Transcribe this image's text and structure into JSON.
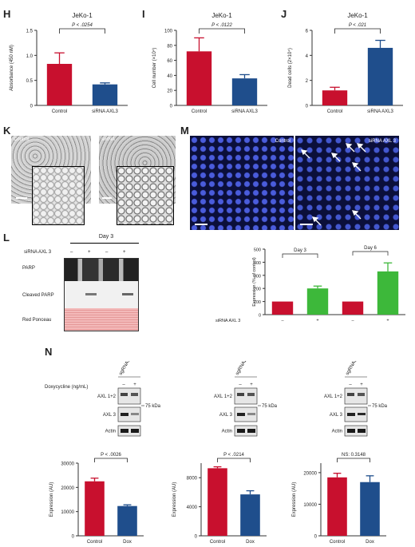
{
  "colors": {
    "control": "#c8102e",
    "sirna": "#1f4e8c",
    "green": "#3db83a",
    "axis": "#333333",
    "fluor_bg": "#0b0f3a",
    "fluor_cell": "#3a4fd0",
    "ponceau": "#e9a7a7"
  },
  "panels": {
    "H": "H",
    "I": "I",
    "J": "J",
    "K": "K",
    "L": "L",
    "M": "M",
    "N": "N"
  },
  "chart_data": [
    {
      "id": "H",
      "type": "bar",
      "title": "JeKo-1",
      "pvalue": "P < .0254",
      "ylabel": "Absorbance (450 nM)",
      "categories": [
        "Control",
        "siRNA AXL3"
      ],
      "values": [
        0.83,
        0.42
      ],
      "errors": [
        0.22,
        0.03
      ],
      "ylim": [
        0,
        1.5
      ],
      "yticks": [
        "0",
        "0.5",
        "1.0",
        "1.5"
      ],
      "ytick_values": [
        0,
        0.5,
        1.0,
        1.5
      ]
    },
    {
      "id": "I",
      "type": "bar",
      "title": "JeKo-1",
      "pvalue": "P < .0122",
      "ylabel": "Cell number (×10⁴)",
      "categories": [
        "Control",
        "siRNA AXL3"
      ],
      "values": [
        72,
        36
      ],
      "errors": [
        18,
        5
      ],
      "ylim": [
        0,
        100
      ],
      "yticks": [
        "0",
        "20",
        "40",
        "60",
        "80",
        "100"
      ],
      "ytick_values": [
        0,
        20,
        40,
        60,
        80,
        100
      ]
    },
    {
      "id": "J",
      "type": "bar",
      "title": "JeKo-1",
      "pvalue": "P < .021",
      "ylabel": "Dead cells (2×10⁴)",
      "categories": [
        "Control",
        "siRNA AXL3"
      ],
      "values": [
        1.2,
        4.6
      ],
      "errors": [
        0.25,
        0.6
      ],
      "ylim": [
        0,
        6
      ],
      "yticks": [
        "0",
        "2",
        "4",
        "6"
      ],
      "ytick_values": [
        0,
        2,
        4,
        6
      ]
    },
    {
      "id": "M",
      "type": "bar",
      "ylabel": "Expression (% of control)",
      "xlabel": "siRNA AXL 3",
      "groups": [
        "Day 3",
        "Day 6"
      ],
      "categories": [
        "–",
        "+",
        "–",
        "+"
      ],
      "values": [
        100,
        200,
        100,
        330
      ],
      "errors": [
        0,
        18,
        0,
        65
      ],
      "ylim": [
        0,
        500
      ],
      "yticks": [
        "0",
        "100",
        "200",
        "300",
        "400",
        "500"
      ],
      "ytick_values": [
        0,
        100,
        200,
        300,
        400,
        500
      ]
    },
    {
      "id": "N1",
      "type": "bar",
      "pvalue": "P < .0026",
      "ylabel": "Expression (AU)",
      "categories": [
        "Control",
        "Dox"
      ],
      "values": [
        22500,
        12300
      ],
      "errors": [
        1300,
        500
      ],
      "ylim": [
        0,
        30000
      ],
      "yticks": [
        "0",
        "10000",
        "20000",
        "30000"
      ],
      "ytick_values": [
        0,
        10000,
        20000,
        30000
      ]
    },
    {
      "id": "N2",
      "type": "bar",
      "pvalue": "P < .0214",
      "ylabel": "Expression (AU)",
      "categories": [
        "Control",
        "Dox"
      ],
      "values": [
        9300,
        5700
      ],
      "errors": [
        200,
        500
      ],
      "ylim": [
        0,
        10000
      ],
      "yticks": [
        "0",
        "4000",
        "8000"
      ],
      "ytick_values": [
        0,
        4000,
        8000
      ]
    },
    {
      "id": "N3",
      "type": "bar",
      "pvalue": "NS: 0.3148",
      "ylabel": "Expression (AU)",
      "categories": [
        "Control",
        "Dox"
      ],
      "values": [
        18500,
        17000
      ],
      "errors": [
        1300,
        2000
      ],
      "ylim": [
        0,
        23000
      ],
      "yticks": [
        "0",
        "10000",
        "20000"
      ],
      "ytick_values": [
        0,
        10000,
        20000
      ]
    }
  ],
  "K": {
    "control_label": "Control",
    "sirna_label": "siRNA"
  },
  "M_images": {
    "control_label": "Control",
    "sirna_label": "siRNA AXL 3"
  },
  "L": {
    "day": "Day 3",
    "row_label": "siRNA AXL 3",
    "signs": [
      "–",
      "+",
      "–",
      "+"
    ],
    "blots": [
      "PARP",
      "Cleaved PARP",
      "Red Ponceau"
    ]
  },
  "N": {
    "dox_label": "Doxycycline (ng/mL)",
    "signs": [
      "–",
      "+"
    ],
    "kda": "75 kDa",
    "guides": [
      {
        "name": "sgRNA1",
        "labels": [
          "AXL 1+2",
          "AXL 3",
          "Actin"
        ]
      },
      {
        "name": "sgRNA2",
        "labels": [
          "AXL 1+2",
          "AXL 3",
          "Actin"
        ]
      },
      {
        "name": "sgRNA3",
        "labels": [
          "AXL 1+2",
          "AXL 3",
          "Actin"
        ]
      }
    ]
  }
}
